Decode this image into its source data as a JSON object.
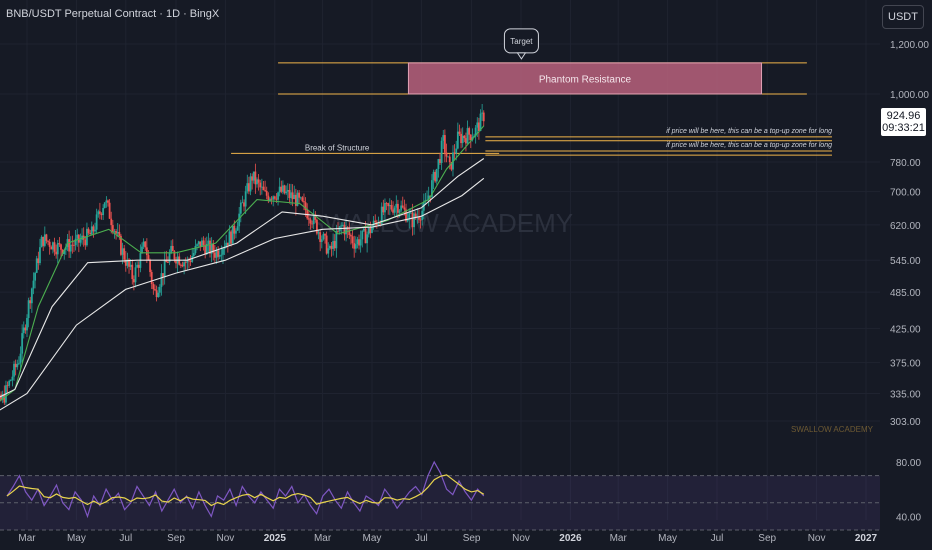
{
  "header": {
    "title": "BNB/USDT Perpetual Contract · 1D · BingX"
  },
  "currency_button": "USDT",
  "current_price": {
    "value": "924.96",
    "countdown": "09:33:21"
  },
  "watermark": {
    "center": "SWALLOW ACADEMY",
    "corner": "SWALLOW ACADEMY"
  },
  "colors": {
    "background": "#161a25",
    "up_candle": "#26a69a",
    "down_candle": "#ef5350",
    "resistance_fill": "#b9627c",
    "level_line": "#f0b44a",
    "ma_green": "#4caf50",
    "ma_white": "#e8e8e8",
    "rsi_line": "#7e57c2",
    "rsi_ma": "#e8d44d"
  },
  "chart_data": {
    "type": "candlestick",
    "x_axis_labels": [
      "Mar",
      "May",
      "Jul",
      "Sep",
      "Nov",
      "2025",
      "Mar",
      "May",
      "Jul",
      "Sep",
      "Nov",
      "2026",
      "Mar",
      "May",
      "Jul",
      "Sep",
      "Nov",
      "2027"
    ],
    "y_axis_labels": [
      "1,200.00",
      "1,000.00",
      "924.96",
      "780.00",
      "700.00",
      "620.00",
      "545.00",
      "485.00",
      "425.00",
      "375.00",
      "335.00",
      "303.00"
    ],
    "y_axis_values": [
      1200,
      1000,
      924.96,
      780,
      700,
      620,
      545,
      485,
      425,
      375,
      335,
      303
    ],
    "scale": "log",
    "price_path": [
      {
        "date": "2024-01-05",
        "price": 300
      },
      {
        "date": "2024-02-01",
        "price": 330
      },
      {
        "date": "2024-02-20",
        "price": 380
      },
      {
        "date": "2024-03-05",
        "price": 480
      },
      {
        "date": "2024-03-20",
        "price": 590
      },
      {
        "date": "2024-04-10",
        "price": 570
      },
      {
        "date": "2024-05-01",
        "price": 580
      },
      {
        "date": "2024-05-20",
        "price": 600
      },
      {
        "date": "2024-06-05",
        "price": 680
      },
      {
        "date": "2024-06-25",
        "price": 570
      },
      {
        "date": "2024-07-10",
        "price": 510
      },
      {
        "date": "2024-07-25",
        "price": 580
      },
      {
        "date": "2024-08-05",
        "price": 480
      },
      {
        "date": "2024-08-25",
        "price": 560
      },
      {
        "date": "2024-09-15",
        "price": 540
      },
      {
        "date": "2024-10-01",
        "price": 580
      },
      {
        "date": "2024-10-20",
        "price": 560
      },
      {
        "date": "2024-11-10",
        "price": 600
      },
      {
        "date": "2024-12-04",
        "price": 740
      },
      {
        "date": "2024-12-20",
        "price": 690
      },
      {
        "date": "2025-01-10",
        "price": 700
      },
      {
        "date": "2025-01-28",
        "price": 680
      },
      {
        "date": "2025-02-15",
        "price": 640
      },
      {
        "date": "2025-03-10",
        "price": 560
      },
      {
        "date": "2025-03-25",
        "price": 620
      },
      {
        "date": "2025-04-10",
        "price": 580
      },
      {
        "date": "2025-04-25",
        "price": 600
      },
      {
        "date": "2025-05-15",
        "price": 650
      },
      {
        "date": "2025-06-01",
        "price": 670
      },
      {
        "date": "2025-06-20",
        "price": 630
      },
      {
        "date": "2025-07-05",
        "price": 660
      },
      {
        "date": "2025-07-20",
        "price": 760
      },
      {
        "date": "2025-07-28",
        "price": 840
      },
      {
        "date": "2025-08-05",
        "price": 760
      },
      {
        "date": "2025-08-15",
        "price": 850
      },
      {
        "date": "2025-08-25",
        "price": 860
      },
      {
        "date": "2025-09-05",
        "price": 870
      },
      {
        "date": "2025-09-16",
        "price": 924.96
      }
    ],
    "moving_averages": [
      {
        "color_key": "ma_green",
        "points": [
          {
            "date": "2024-01-05",
            "price": 310
          },
          {
            "date": "2024-02-15",
            "price": 340
          },
          {
            "date": "2024-03-15",
            "price": 460
          },
          {
            "date": "2024-04-20",
            "price": 580
          },
          {
            "date": "2024-06-10",
            "price": 610
          },
          {
            "date": "2024-07-20",
            "price": 560
          },
          {
            "date": "2024-09-01",
            "price": 560
          },
          {
            "date": "2024-10-20",
            "price": 580
          },
          {
            "date": "2024-12-10",
            "price": 680
          },
          {
            "date": "2025-02-01",
            "price": 670
          },
          {
            "date": "2025-03-20",
            "price": 600
          },
          {
            "date": "2025-05-20",
            "price": 630
          },
          {
            "date": "2025-07-10",
            "price": 680
          },
          {
            "date": "2025-08-01",
            "price": 760
          },
          {
            "date": "2025-09-16",
            "price": 890
          }
        ]
      },
      {
        "color_key": "ma_white",
        "points": [
          {
            "date": "2024-01-05",
            "price": 320
          },
          {
            "date": "2024-02-15",
            "price": 340
          },
          {
            "date": "2024-04-01",
            "price": 460
          },
          {
            "date": "2024-05-15",
            "price": 540
          },
          {
            "date": "2024-07-15",
            "price": 545
          },
          {
            "date": "2024-09-15",
            "price": 545
          },
          {
            "date": "2024-11-15",
            "price": 580
          },
          {
            "date": "2025-01-10",
            "price": 650
          },
          {
            "date": "2025-03-01",
            "price": 640
          },
          {
            "date": "2025-05-01",
            "price": 620
          },
          {
            "date": "2025-07-01",
            "price": 660
          },
          {
            "date": "2025-08-15",
            "price": 740
          },
          {
            "date": "2025-09-16",
            "price": 790
          }
        ]
      },
      {
        "color_key": "ma_white",
        "points": [
          {
            "date": "2024-01-05",
            "price": 303
          },
          {
            "date": "2024-03-01",
            "price": 335
          },
          {
            "date": "2024-05-01",
            "price": 430
          },
          {
            "date": "2024-07-01",
            "price": 490
          },
          {
            "date": "2024-09-01",
            "price": 520
          },
          {
            "date": "2024-11-01",
            "price": 545
          },
          {
            "date": "2025-01-01",
            "price": 590
          },
          {
            "date": "2025-03-01",
            "price": 610
          },
          {
            "date": "2025-05-01",
            "price": 615
          },
          {
            "date": "2025-07-01",
            "price": 640
          },
          {
            "date": "2025-08-20",
            "price": 690
          },
          {
            "date": "2025-09-16",
            "price": 735
          }
        ]
      }
    ],
    "annotations": {
      "target_label": "Target",
      "resistance_zone": {
        "label": "Phantom Resistance",
        "low": 1000,
        "high": 1120,
        "from": "2025-06-15",
        "to": "2026-08-25"
      },
      "resistance_lines": [
        {
          "price": 1120,
          "from": "2025-01-05",
          "to": "2026-10-20"
        },
        {
          "price": 1000,
          "from": "2025-01-05",
          "to": "2026-10-20"
        }
      ],
      "break_of_structure": {
        "label": "Break of Structure",
        "price": 805,
        "from": "2024-11-08",
        "to": "2025-10-05"
      },
      "topup_zones": [
        {
          "label": "if price will be here, this can be a top-up zone for long",
          "price_top": 855,
          "price_bottom": 843,
          "from": "2025-09-18",
          "to": "2026-11-20"
        },
        {
          "label": "if price will be here, this can be a top-up zone for long",
          "price_top": 812,
          "price_bottom": 800,
          "from": "2025-09-18",
          "to": "2026-11-20"
        }
      ]
    },
    "rsi": {
      "y_axis_labels": [
        "80.00",
        "40.00"
      ],
      "y_axis_values": [
        80,
        40
      ],
      "bands": [
        70,
        50,
        30
      ],
      "values": [
        55,
        62,
        70,
        58,
        52,
        60,
        48,
        55,
        63,
        50,
        45,
        58,
        52,
        40,
        55,
        48,
        60,
        52,
        57,
        45,
        50,
        62,
        55,
        48,
        58,
        44,
        52,
        60,
        50,
        55,
        46,
        58,
        48,
        40,
        55,
        52,
        60,
        48,
        62,
        55,
        50,
        58,
        52,
        46,
        60,
        55,
        62,
        50,
        56,
        48,
        42,
        55,
        60,
        52,
        46,
        58,
        50,
        44,
        55,
        52,
        48,
        60,
        54,
        46,
        52,
        58,
        62,
        56,
        70,
        80,
        72,
        60,
        56,
        66,
        58,
        52,
        60,
        55
      ]
    }
  }
}
